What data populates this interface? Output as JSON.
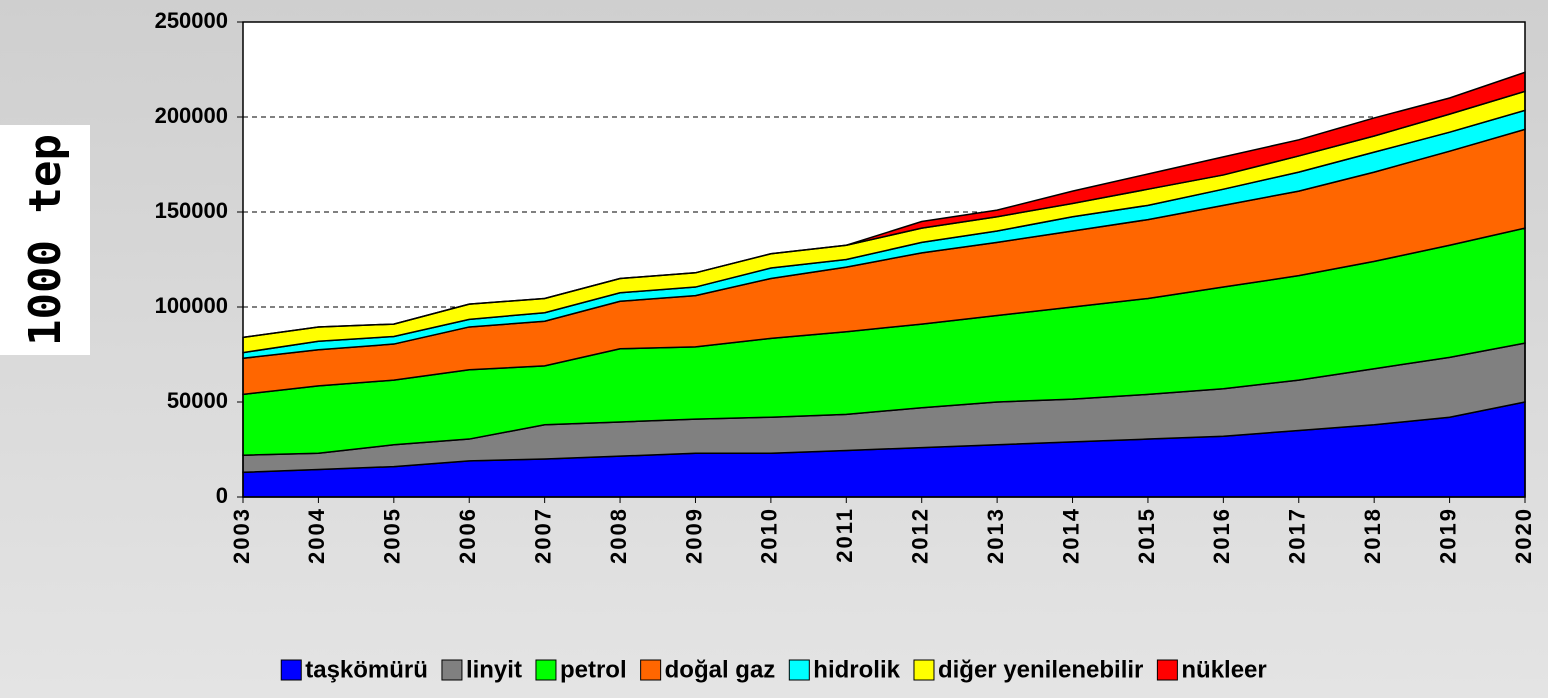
{
  "chart_data": {
    "type": "stacked_area",
    "y_label": "1000 tep",
    "x": [
      2003,
      2004,
      2005,
      2006,
      2007,
      2008,
      2009,
      2010,
      2011,
      2012,
      2013,
      2014,
      2015,
      2016,
      2017,
      2018,
      2019,
      2020
    ],
    "series": [
      {
        "name": "taşkömürü",
        "color": "#0000ff",
        "values": [
          13000,
          14500,
          16000,
          19000,
          20000,
          21500,
          23000,
          23000,
          24500,
          26000,
          27500,
          29000,
          30500,
          32000,
          35000,
          38000,
          42000,
          50000
        ]
      },
      {
        "name": "linyit",
        "color": "#808080",
        "values": [
          9000,
          8500,
          11500,
          11500,
          18000,
          18000,
          18000,
          19000,
          19000,
          21000,
          22500,
          22500,
          23500,
          25000,
          26500,
          29500,
          31500,
          31000
        ]
      },
      {
        "name": "petrol",
        "color": "#00ff00",
        "values": [
          32000,
          35500,
          34000,
          36500,
          31000,
          38500,
          38000,
          41500,
          43500,
          44000,
          45500,
          48500,
          50500,
          53500,
          55000,
          56500,
          59000,
          60500
        ]
      },
      {
        "name": "doğal gaz",
        "color": "#ff6600",
        "values": [
          19000,
          19000,
          19000,
          22500,
          23500,
          25000,
          27000,
          31500,
          34000,
          37500,
          38500,
          40000,
          41500,
          43000,
          44500,
          47000,
          49500,
          52000
        ]
      },
      {
        "name": "hidrolik",
        "color": "#00ffff",
        "values": [
          3000,
          4500,
          4000,
          4000,
          4500,
          4500,
          4500,
          5500,
          4000,
          5500,
          6000,
          7500,
          7500,
          8500,
          10000,
          10500,
          10000,
          10000
        ]
      },
      {
        "name": "diğer yenilenebilir",
        "color": "#ffff00",
        "values": [
          8000,
          7500,
          6500,
          8000,
          7500,
          7500,
          7500,
          7500,
          7500,
          7500,
          7500,
          7000,
          8500,
          7500,
          8500,
          8500,
          9500,
          10000
        ]
      },
      {
        "name": "nükleer",
        "color": "#ff0000",
        "values": [
          0,
          0,
          0,
          0,
          0,
          0,
          0,
          0,
          0,
          3500,
          3500,
          6500,
          8000,
          9500,
          8500,
          9500,
          8500,
          10000
        ]
      }
    ],
    "ylim": [
      0,
      250000
    ],
    "yticks": [
      0,
      50000,
      100000,
      150000,
      200000,
      250000
    ],
    "grid": true
  }
}
